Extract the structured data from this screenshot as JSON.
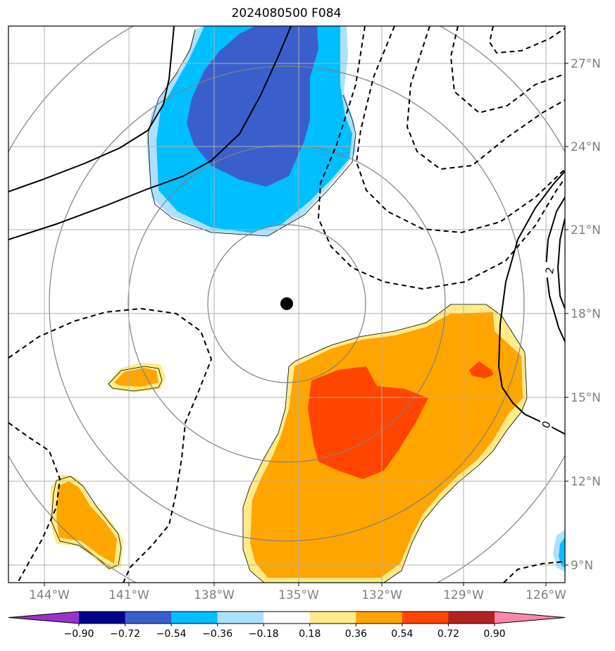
{
  "title": "2024080500 F084",
  "colors": {
    "lt_neg1": "#ade0fb",
    "lt_neg2": "#00bfff",
    "lt_neg3": "#3a5fcd",
    "pos1": "#ffeb8a",
    "pos2": "#ffa500",
    "pos3": "#ff4500",
    "center_marker": "#000000",
    "range_ring": "#808080",
    "gridline": "#b0b0b0"
  },
  "latitude_labels": [
    "27°N",
    "24°N",
    "21°N",
    "18°N",
    "15°N",
    "12°N",
    "9°N"
  ],
  "longitude_labels": [
    "144°W",
    "141°W",
    "138°W",
    "135°W",
    "132°W",
    "129°W",
    "126°W"
  ],
  "contour_labels": [
    "2",
    "0"
  ],
  "colorbar": {
    "labels": [
      "−0.90",
      "−0.72",
      "−0.54",
      "−0.36",
      "−0.18",
      "0.18",
      "0.36",
      "0.54",
      "0.72",
      "0.90"
    ],
    "colors": [
      "#9932cc",
      "#00008b",
      "#3a5fcd",
      "#00bfff",
      "#ade0fb",
      "#ffffff",
      "#ffeb8a",
      "#ffa500",
      "#ff4500",
      "#b22222",
      "#ff88aa"
    ]
  }
}
